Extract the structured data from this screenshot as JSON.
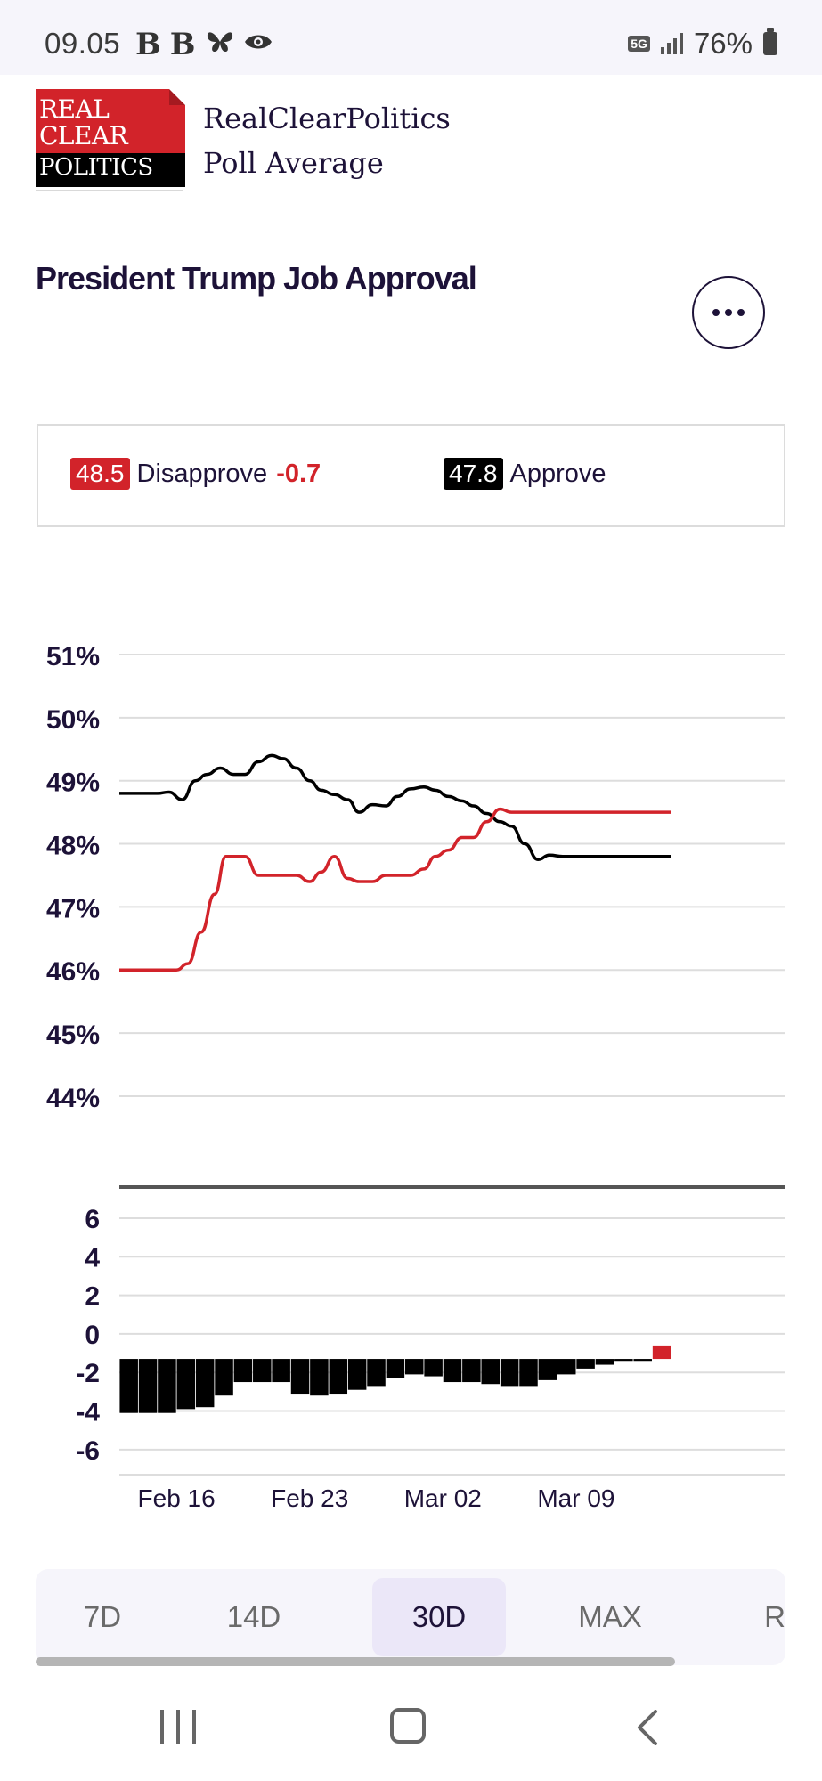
{
  "status_bar": {
    "time": "09.05",
    "battery": "76%",
    "network": "5G",
    "app_icons": [
      "b-letter-icon",
      "b-letter-icon",
      "butterfly-icon",
      "eye-icon"
    ]
  },
  "header": {
    "logo_lines": [
      "REAL",
      "CLEAR",
      "POLITICS"
    ],
    "title_line1": "RealClearPolitics",
    "title_line2": "Poll Average"
  },
  "chart_title": "President Trump Job Approval",
  "legend": {
    "disapprove": {
      "value": "48.5",
      "label": "Disapprove",
      "change": "-0.7",
      "color": "#d2232a"
    },
    "approve": {
      "value": "47.8",
      "label": "Approve",
      "color": "#000000"
    }
  },
  "chart_data": {
    "type": "line",
    "top_panel": {
      "y_ticks": [
        "51%",
        "50%",
        "49%",
        "48%",
        "47%",
        "46%",
        "45%",
        "44%"
      ],
      "ylim": [
        43.35,
        51
      ],
      "x_tick_labels": [
        "Feb 16",
        "Feb 23",
        "Mar 02",
        "Mar 09"
      ],
      "x_tick_positions": [
        3,
        10,
        17,
        24
      ],
      "x_range": [
        0,
        35
      ],
      "series": [
        {
          "name": "Approve",
          "color": "#000000",
          "x": [
            0,
            1,
            2,
            2.6,
            3.3,
            4,
            4.6,
            5.3,
            6,
            6.6,
            7.3,
            8,
            8.6,
            9.3,
            10,
            10.6,
            11.3,
            12,
            12.6,
            13.3,
            14,
            14.6,
            15.3,
            16,
            16.6,
            17.3,
            18,
            18.6,
            19.3,
            20,
            20.6,
            21.3,
            22,
            22.6,
            23.3,
            24,
            24.6,
            25.3,
            26,
            26.6,
            27.3,
            28,
            28.6,
            29
          ],
          "values": [
            48.8,
            48.8,
            48.8,
            48.82,
            48.7,
            49.0,
            49.1,
            49.2,
            49.1,
            49.1,
            49.3,
            49.4,
            49.35,
            49.2,
            49.0,
            48.85,
            48.78,
            48.7,
            48.5,
            48.62,
            48.6,
            48.75,
            48.87,
            48.9,
            48.85,
            48.75,
            48.68,
            48.6,
            48.48,
            48.35,
            48.28,
            48.0,
            47.75,
            47.82,
            47.8,
            47.8,
            47.8,
            47.8,
            47.8,
            47.8,
            47.8,
            47.8,
            47.8,
            47.8
          ]
        },
        {
          "name": "Disapprove",
          "color": "#d2232a",
          "x": [
            0,
            1,
            2,
            3,
            3.6,
            4.3,
            5,
            5.6,
            6,
            6.6,
            7.3,
            8,
            8.6,
            9.3,
            10,
            10.6,
            11.3,
            12,
            12.6,
            13.3,
            14,
            14.6,
            15.3,
            16,
            16.6,
            17.3,
            18,
            18.6,
            19.3,
            20,
            20.6,
            21.3,
            22,
            22.6,
            23.3,
            24,
            24.6,
            25.3,
            26,
            26.6,
            27.3,
            28,
            28.6,
            29
          ],
          "values": [
            46.0,
            46.0,
            46.0,
            46.0,
            46.1,
            46.6,
            47.2,
            47.8,
            47.8,
            47.8,
            47.5,
            47.5,
            47.5,
            47.5,
            47.4,
            47.55,
            47.8,
            47.45,
            47.4,
            47.4,
            47.5,
            47.5,
            47.5,
            47.6,
            47.8,
            47.9,
            48.1,
            48.1,
            48.35,
            48.55,
            48.5,
            48.5,
            48.5,
            48.5,
            48.5,
            48.5,
            48.5,
            48.5,
            48.5,
            48.5,
            48.5,
            48.5,
            48.5,
            48.5
          ]
        }
      ]
    },
    "bottom_panel": {
      "type": "bar",
      "y_ticks": [
        "6",
        "4",
        "2",
        "0",
        "-2",
        "-4",
        "-6"
      ],
      "ylim": [
        -7.3,
        7.2
      ],
      "negative_color": "#000000",
      "positive_color": "#d2232a",
      "x": [
        0,
        1,
        2,
        3,
        4,
        5,
        6,
        7,
        8,
        9,
        10,
        11,
        12,
        13,
        14,
        15,
        16,
        17,
        18,
        19,
        20,
        21,
        22,
        23,
        24,
        25,
        26,
        27,
        28
      ],
      "values": [
        -2.8,
        -2.8,
        -2.8,
        -2.6,
        -2.5,
        -1.9,
        -1.2,
        -1.2,
        -1.2,
        -1.8,
        -1.9,
        -1.8,
        -1.6,
        -1.4,
        -1.0,
        -0.8,
        -0.9,
        -1.2,
        -1.2,
        -1.3,
        -1.4,
        -1.4,
        -1.1,
        -0.8,
        -0.5,
        -0.3,
        -0.1,
        -0.1,
        0.7
      ]
    }
  },
  "range_tabs": [
    "7D",
    "14D",
    "30D",
    "MAX",
    "R"
  ],
  "active_range": "30D"
}
